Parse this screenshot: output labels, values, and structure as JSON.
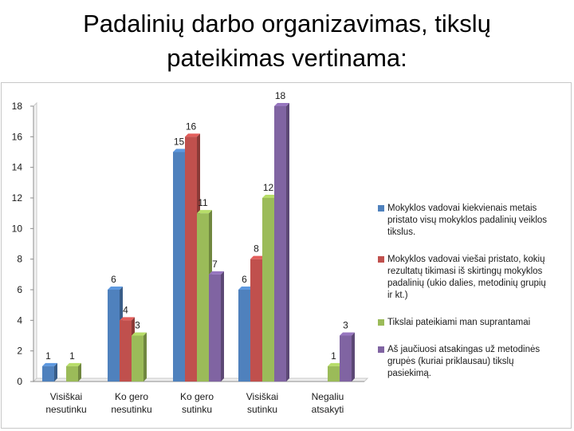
{
  "slide": {
    "title_line1": "Padalinių darbo organizavimas, tikslų",
    "title_line2": "pateikimas vertinama:"
  },
  "chart_data": {
    "type": "bar",
    "categories": [
      [
        "Visiškai",
        "nesutinku"
      ],
      [
        "Ko gero",
        "nesutinku"
      ],
      [
        "Ko gero",
        "sutinku"
      ],
      [
        "Visiškai",
        "sutinku"
      ],
      [
        "Negaliu",
        "atsakyti"
      ]
    ],
    "series": [
      {
        "name": "Mokyklos vadovai kiekvienais metais pristato visų mokyklos padalinių veiklos tikslus.",
        "legend_lines": [
          "Mokyklos vadovai kiekvienais metais",
          "pristato visų mokyklos padalinių veiklos",
          "tikslus."
        ],
        "color": "#4f81bd",
        "values": [
          1,
          6,
          15,
          6,
          null
        ]
      },
      {
        "name": "Mokyklos vadovai viešai pristato, kokių rezultatų tikimasi iš skirtingų mokyklos padalinių (ukio dalies, metodinių grupių ir kt.)",
        "legend_lines": [
          "Mokyklos vadovai viešai pristato, kokių",
          "rezultatų tikimasi iš skirtingų mokyklos",
          "padalinių (ukio dalies, metodinių grupių",
          "ir kt.)"
        ],
        "color": "#c0504d",
        "values": [
          null,
          4,
          16,
          8,
          null
        ]
      },
      {
        "name": "Tikslai pateikiami man suprantamai",
        "legend_lines": [
          "Tikslai pateikiami man suprantamai"
        ],
        "color": "#9bbb59",
        "values": [
          1,
          3,
          11,
          12,
          1
        ]
      },
      {
        "name": "Aš jaučiuosi atsakingas už metodinės grupės (kuriai priklausau) tikslų pasiekimą.",
        "legend_lines": [
          "Aš jaučiuosi atsakingas už metodinės",
          "grupės (kuriai priklausau) tikslų",
          "pasiekimą."
        ],
        "color": "#8064a2",
        "values": [
          null,
          null,
          7,
          18,
          3
        ]
      }
    ],
    "ylim": [
      0,
      18
    ],
    "yticks": [
      0,
      2,
      4,
      6,
      8,
      10,
      12,
      14,
      16,
      18
    ],
    "grid": false,
    "legend_position": "right",
    "data_labels": true
  }
}
